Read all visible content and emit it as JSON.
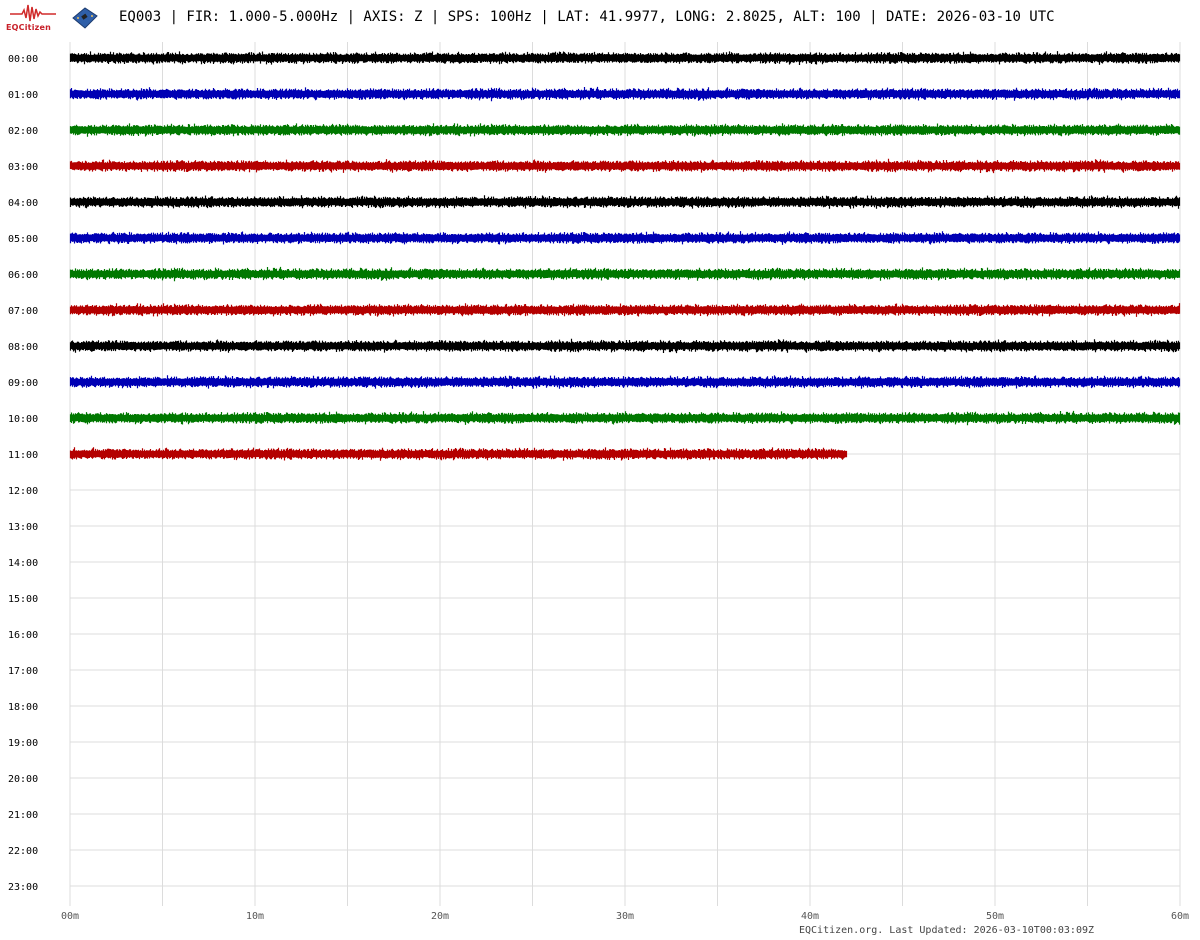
{
  "header": {
    "logo_text": "EQCitizen",
    "title": "EQ003 | FIR: 1.000-5.000Hz | AXIS: Z | SPS: 100Hz | LAT: 41.9977, LONG: 2.8025, ALT: 100 | DATE: 2026-03-10 UTC"
  },
  "footer": {
    "text": "EQCitizen.org. Last Updated: 2026-03-10T00:03:09Z"
  },
  "chart_data": {
    "type": "line",
    "subtype": "helicorder",
    "xlim": [
      0,
      60
    ],
    "x_tick_labels": [
      "00m",
      "10m",
      "20m",
      "30m",
      "40m",
      "50m",
      "60m"
    ],
    "x_ticks": [
      0,
      10,
      20,
      30,
      40,
      50,
      60
    ],
    "x_grid_minutes": 5,
    "row_labels": [
      "00:00",
      "01:00",
      "02:00",
      "03:00",
      "04:00",
      "05:00",
      "06:00",
      "07:00",
      "08:00",
      "09:00",
      "10:00",
      "11:00",
      "12:00",
      "13:00",
      "14:00",
      "15:00",
      "16:00",
      "17:00",
      "18:00",
      "19:00",
      "20:00",
      "21:00",
      "22:00",
      "23:00"
    ],
    "grid": true,
    "color_cycle": [
      "#000000",
      "#0000b4",
      "#007800",
      "#b40000"
    ],
    "series": [
      {
        "row": "00:00",
        "end_minute": 60
      },
      {
        "row": "01:00",
        "end_minute": 60
      },
      {
        "row": "02:00",
        "end_minute": 60
      },
      {
        "row": "03:00",
        "end_minute": 60
      },
      {
        "row": "04:00",
        "end_minute": 60
      },
      {
        "row": "05:00",
        "end_minute": 60
      },
      {
        "row": "06:00",
        "end_minute": 60
      },
      {
        "row": "07:00",
        "end_minute": 60
      },
      {
        "row": "08:00",
        "end_minute": 60
      },
      {
        "row": "09:00",
        "end_minute": 60
      },
      {
        "row": "10:00",
        "end_minute": 60
      },
      {
        "row": "11:00",
        "end_minute": 42
      }
    ]
  }
}
